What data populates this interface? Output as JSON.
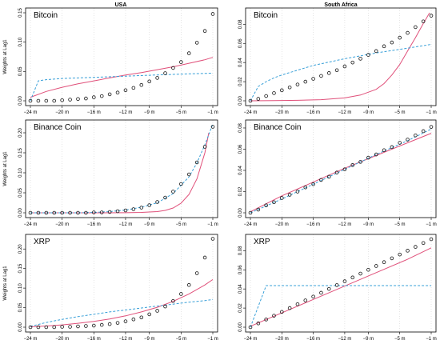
{
  "column_titles": [
    "USA",
    "South Africa"
  ],
  "ylabel": "Weights at Lag1",
  "colors": {
    "points": "#1a1a1a",
    "solid_line": "#e0507a",
    "dashed_line": "#3aa0d8",
    "grid": "#d4d4d4"
  },
  "chart_data": [
    {
      "type": "scatter",
      "title": "Bitcoin",
      "column": "USA",
      "xticks": [
        -24,
        -20,
        -16,
        -12,
        -9,
        -5,
        -1
      ],
      "xtick_labels": [
        "−24 m",
        "−20 m",
        "−16 m",
        "−12 m",
        "−9 m",
        "−5 m",
        "−1 m"
      ],
      "yticks": [
        0,
        0.05,
        0.1,
        0.15
      ],
      "ytick_labels": [
        "0.00",
        "0.05",
        "0.10",
        "0.15"
      ],
      "xlim": [
        -24,
        -1
      ],
      "ylim": [
        0,
        0.15
      ],
      "points": {
        "x": [
          -24,
          -23,
          -22,
          -21,
          -20,
          -19,
          -18,
          -17,
          -16,
          -15,
          -14,
          -13,
          -12,
          -11,
          -10,
          -9,
          -8,
          -7,
          -6,
          -5,
          -4,
          -3,
          -2,
          -1
        ],
        "y": [
          0,
          0,
          0,
          0,
          0.001,
          0.002,
          0.003,
          0.004,
          0.006,
          0.008,
          0.011,
          0.014,
          0.018,
          0.022,
          0.027,
          0.033,
          0.039,
          0.047,
          0.056,
          0.066,
          0.081,
          0.099,
          0.119,
          0.148
        ]
      },
      "solid_line": {
        "x": [
          -24,
          -22,
          -20,
          -18,
          -16,
          -14,
          -12,
          -10,
          -8,
          -6,
          -4,
          -2,
          -1
        ],
        "y": [
          0.006,
          0.016,
          0.023,
          0.029,
          0.034,
          0.039,
          0.044,
          0.048,
          0.053,
          0.058,
          0.064,
          0.07,
          0.074
        ]
      },
      "dashed_line": {
        "x": [
          -24,
          -23,
          -22,
          -20,
          -16,
          -12,
          -8,
          -4,
          -1
        ],
        "y": [
          0,
          0.034,
          0.036,
          0.038,
          0.04,
          0.042,
          0.044,
          0.046,
          0.047
        ]
      }
    },
    {
      "type": "scatter",
      "title": "Bitcoin",
      "column": "South Africa",
      "xticks": [
        -24,
        -20,
        -16,
        -12,
        -9,
        -5,
        -1
      ],
      "xtick_labels": [
        "−24 m",
        "−20 m",
        "−16 m",
        "−12 m",
        "−9 m",
        "−5 m",
        "−1 m"
      ],
      "yticks": [
        0,
        0.02,
        0.04,
        0.06,
        0.08
      ],
      "ytick_labels": [
        "0.00",
        "0.02",
        "0.04",
        "0.06",
        "0.08"
      ],
      "xlim": [
        -24,
        -1
      ],
      "ylim": [
        0,
        0.092
      ],
      "points": {
        "x": [
          -24,
          -23,
          -22,
          -21,
          -20,
          -19,
          -18,
          -17,
          -16,
          -15,
          -14,
          -13,
          -12,
          -11,
          -10,
          -9,
          -8,
          -7,
          -6,
          -5,
          -4,
          -3,
          -2,
          -1
        ],
        "y": [
          0,
          0.002,
          0.005,
          0.008,
          0.011,
          0.014,
          0.017,
          0.02,
          0.023,
          0.026,
          0.029,
          0.032,
          0.036,
          0.04,
          0.044,
          0.048,
          0.052,
          0.057,
          0.061,
          0.066,
          0.071,
          0.077,
          0.083,
          0.089
        ]
      },
      "solid_line": {
        "x": [
          -24,
          -21,
          -18,
          -15,
          -12,
          -10,
          -8,
          -7,
          -6,
          -5,
          -4,
          -3,
          -2,
          -1.2
        ],
        "y": [
          0,
          0.0002,
          0.0005,
          0.0012,
          0.003,
          0.006,
          0.012,
          0.018,
          0.027,
          0.038,
          0.052,
          0.066,
          0.081,
          0.092
        ]
      },
      "dashed_line": {
        "x": [
          -24,
          -23,
          -22,
          -21,
          -20,
          -18,
          -16,
          -12,
          -8,
          -4,
          -1
        ],
        "y": [
          0,
          0.015,
          0.02,
          0.024,
          0.027,
          0.032,
          0.037,
          0.044,
          0.05,
          0.055,
          0.059
        ]
      }
    },
    {
      "type": "scatter",
      "title": "Binance Coin",
      "column": "USA",
      "xticks": [
        -24,
        -20,
        -16,
        -12,
        -9,
        -5,
        -1
      ],
      "xtick_labels": [
        "−24 m",
        "−20 m",
        "−16 m",
        "−12 m",
        "−9 m",
        "−5 m",
        "−1 m"
      ],
      "yticks": [
        0,
        0.05,
        0.1,
        0.15,
        0.2
      ],
      "ytick_labels": [
        "0.00",
        "0.05",
        "0.10",
        "0.15",
        "0.20"
      ],
      "xlim": [
        -24,
        -1
      ],
      "ylim": [
        0,
        0.22
      ],
      "points": {
        "x": [
          -24,
          -23,
          -22,
          -21,
          -20,
          -19,
          -18,
          -17,
          -16,
          -15,
          -14,
          -13,
          -12,
          -11,
          -10,
          -9,
          -8,
          -7,
          -6,
          -5,
          -4,
          -3,
          -2,
          -1
        ],
        "y": [
          0,
          0,
          0,
          0,
          0,
          0,
          0,
          0,
          0.001,
          0.001,
          0.002,
          0.004,
          0.006,
          0.009,
          0.013,
          0.019,
          0.027,
          0.038,
          0.053,
          0.072,
          0.096,
          0.126,
          0.165,
          0.215
        ]
      },
      "solid_line": {
        "x": [
          -24,
          -16,
          -12,
          -10,
          -8,
          -7,
          -6,
          -5,
          -4,
          -3,
          -2,
          -1.5
        ],
        "y": [
          0,
          0,
          0.0003,
          0.001,
          0.003,
          0.006,
          0.012,
          0.024,
          0.046,
          0.085,
          0.15,
          0.2
        ]
      },
      "dashed_line": {
        "x": [
          -24,
          -18,
          -16,
          -14,
          -12,
          -10,
          -8,
          -6,
          -4,
          -3,
          -2,
          -1
        ],
        "y": [
          0,
          0,
          0.001,
          0.003,
          0.007,
          0.014,
          0.025,
          0.048,
          0.09,
          0.125,
          0.17,
          0.222
        ]
      }
    },
    {
      "type": "scatter",
      "title": "Binance Coin",
      "column": "South Africa",
      "xticks": [
        -24,
        -20,
        -16,
        -12,
        -9,
        -5,
        -1
      ],
      "xtick_labels": [
        "−24 m",
        "−20 m",
        "−16 m",
        "−12 m",
        "−9 m",
        "−5 m",
        "−1 m"
      ],
      "yticks": [
        0,
        0.02,
        0.04,
        0.06,
        0.08
      ],
      "ytick_labels": [
        "0.00",
        "0.02",
        "0.04",
        "0.06",
        "0.08"
      ],
      "xlim": [
        -24,
        -1
      ],
      "ylim": [
        0,
        0.083
      ],
      "points": {
        "x": [
          -24,
          -23,
          -22,
          -21,
          -20,
          -19,
          -18,
          -17,
          -16,
          -15,
          -14,
          -13,
          -12,
          -11,
          -10,
          -9,
          -8,
          -7,
          -6,
          -5,
          -4,
          -3,
          -2,
          -1
        ],
        "y": [
          0,
          0.003,
          0.007,
          0.01,
          0.014,
          0.017,
          0.02,
          0.024,
          0.027,
          0.031,
          0.034,
          0.038,
          0.041,
          0.045,
          0.048,
          0.052,
          0.055,
          0.059,
          0.062,
          0.066,
          0.069,
          0.073,
          0.077,
          0.081
        ]
      },
      "solid_line": {
        "x": [
          -24,
          -20,
          -16,
          -12,
          -8,
          -4,
          -1
        ],
        "y": [
          0.001,
          0.016,
          0.029,
          0.042,
          0.054,
          0.066,
          0.075
        ]
      },
      "dashed_line": {
        "x": [
          -24,
          -20,
          -16,
          -12,
          -8,
          -4,
          -1
        ],
        "y": [
          0,
          0.013,
          0.027,
          0.041,
          0.055,
          0.068,
          0.079
        ]
      }
    },
    {
      "type": "scatter",
      "title": "XRP",
      "column": "USA",
      "xticks": [
        -24,
        -20,
        -16,
        -12,
        -9,
        -5,
        -1
      ],
      "xtick_labels": [
        "−24 m",
        "−20 m",
        "−16 m",
        "−12 m",
        "−9 m",
        "−5 m",
        "−1 m"
      ],
      "yticks": [
        0,
        0.05,
        0.1,
        0.15,
        0.2
      ],
      "ytick_labels": [
        "0.00",
        "0.05",
        "0.10",
        "0.15",
        "0.20"
      ],
      "xlim": [
        -24,
        -1
      ],
      "ylim": [
        0,
        0.225
      ],
      "points": {
        "x": [
          -24,
          -23,
          -22,
          -21,
          -20,
          -19,
          -18,
          -17,
          -16,
          -15,
          -14,
          -13,
          -12,
          -11,
          -10,
          -9,
          -8,
          -7,
          -6,
          -5,
          -4,
          -3,
          -2,
          -1
        ],
        "y": [
          0,
          0,
          0,
          0,
          0.001,
          0.001,
          0.002,
          0.003,
          0.004,
          0.006,
          0.008,
          0.011,
          0.015,
          0.02,
          0.025,
          0.033,
          0.042,
          0.053,
          0.067,
          0.085,
          0.108,
          0.138,
          0.178,
          0.226
        ]
      },
      "solid_line": {
        "x": [
          -24,
          -22,
          -20,
          -18,
          -16,
          -14,
          -12,
          -10,
          -8,
          -6,
          -4,
          -2,
          -1
        ],
        "y": [
          0.001,
          0.003,
          0.006,
          0.01,
          0.015,
          0.021,
          0.029,
          0.039,
          0.051,
          0.066,
          0.085,
          0.108,
          0.122
        ]
      },
      "dashed_line": {
        "x": [
          -24,
          -22,
          -20,
          -18,
          -16,
          -14,
          -12,
          -10,
          -8,
          -6,
          -4,
          -2,
          -1
        ],
        "y": [
          0.002,
          0.012,
          0.02,
          0.027,
          0.033,
          0.039,
          0.044,
          0.049,
          0.054,
          0.059,
          0.064,
          0.068,
          0.071
        ]
      }
    },
    {
      "type": "scatter",
      "title": "XRP",
      "column": "South Africa",
      "xticks": [
        -24,
        -20,
        -16,
        -12,
        -9,
        -5,
        -1
      ],
      "xtick_labels": [
        "−24 m",
        "−20 m",
        "−16 m",
        "−12 m",
        "−9 m",
        "−5 m",
        "−1 m"
      ],
      "yticks": [
        0,
        0.02,
        0.04,
        0.06,
        0.08
      ],
      "ytick_labels": [
        "0.00",
        "0.02",
        "0.04",
        "0.06",
        "0.08"
      ],
      "xlim": [
        -24,
        -1
      ],
      "ylim": [
        0,
        0.092
      ],
      "points": {
        "x": [
          -24,
          -23,
          -22,
          -21,
          -20,
          -19,
          -18,
          -17,
          -16,
          -15,
          -14,
          -13,
          -12,
          -11,
          -10,
          -9,
          -8,
          -7,
          -6,
          -5,
          -4,
          -3,
          -2,
          -1
        ],
        "y": [
          0,
          0.004,
          0.008,
          0.012,
          0.016,
          0.02,
          0.024,
          0.028,
          0.032,
          0.036,
          0.04,
          0.044,
          0.048,
          0.052,
          0.056,
          0.06,
          0.064,
          0.068,
          0.072,
          0.076,
          0.08,
          0.084,
          0.088,
          0.092
        ]
      },
      "solid_line": {
        "x": [
          -24,
          -20,
          -16,
          -12,
          -8,
          -4,
          -1
        ],
        "y": [
          0.001,
          0.015,
          0.029,
          0.043,
          0.057,
          0.071,
          0.083
        ]
      },
      "dashed_line": {
        "x": [
          -24,
          -22,
          -20,
          -16,
          -12,
          -8,
          -4,
          -1
        ],
        "y": [
          0,
          0.0435,
          0.0435,
          0.0435,
          0.0435,
          0.0435,
          0.0435,
          0.0435
        ]
      }
    }
  ]
}
